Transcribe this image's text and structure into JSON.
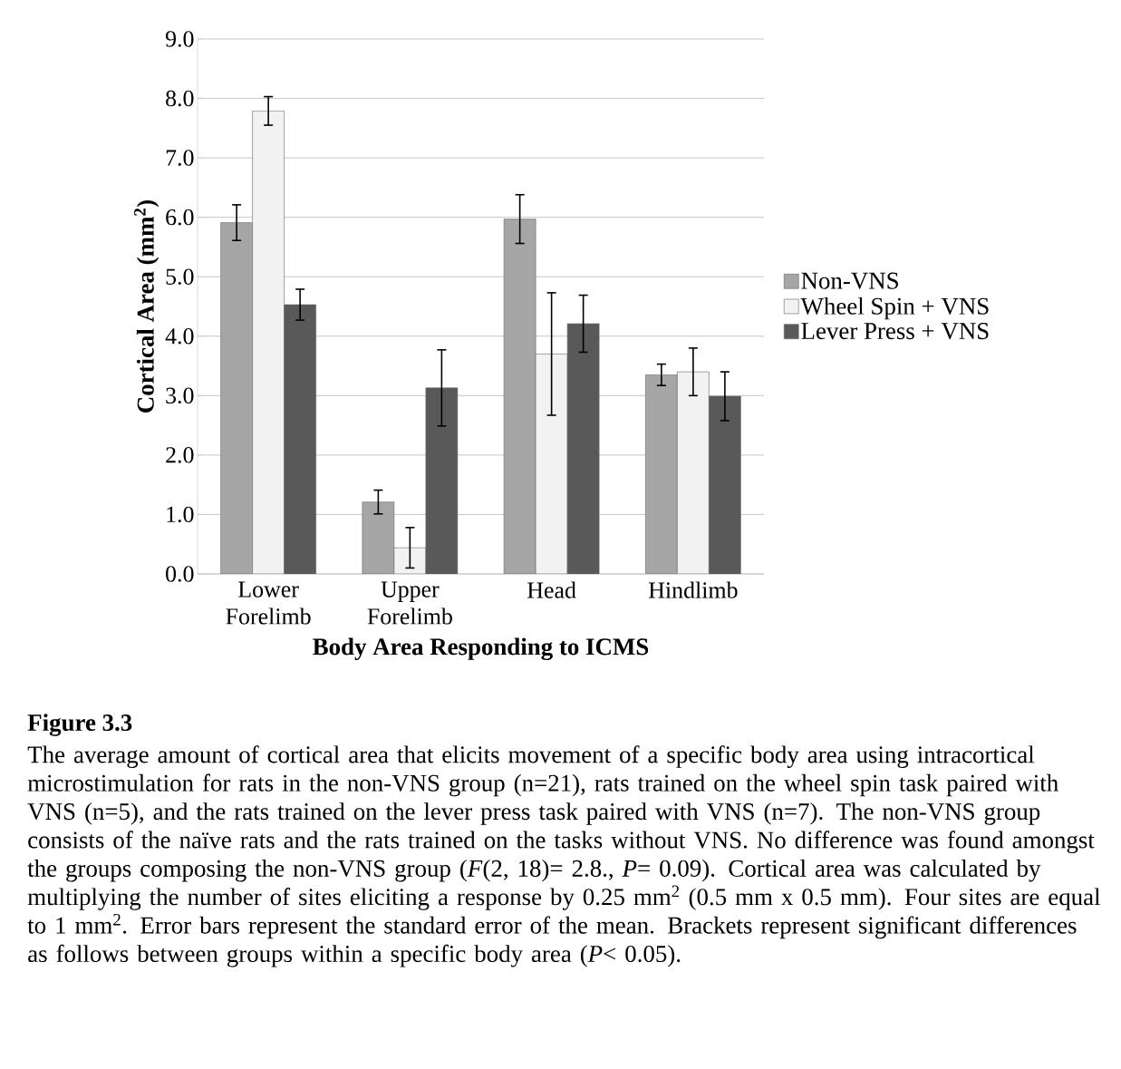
{
  "chart_data": {
    "type": "bar",
    "title": "Figure 3.3",
    "categories": [
      "Lower Forelimb",
      "Upper Forelimb",
      "Head",
      "Hindlimb"
    ],
    "xlabel": "Body Area Responding to ICMS",
    "ylabel": "Cortical Area (mm$^{2}$)",
    "series": [
      {
        "name": "Non-VNS",
        "color": "#a6a6a6",
        "values": [
          5.91,
          1.21,
          5.97,
          3.35
        ],
        "errors": [
          0.3,
          0.2,
          0.41,
          0.18
        ]
      },
      {
        "name": "Wheel Spin + VNS",
        "color": "#f2f2f2",
        "values": [
          7.79,
          0.44,
          3.7,
          3.4
        ],
        "errors": [
          0.24,
          0.34,
          1.03,
          0.4
        ]
      },
      {
        "name": "Lever Press + VNS",
        "color": "#595959",
        "values": [
          4.53,
          3.13,
          4.21,
          2.99
        ],
        "errors": [
          0.26,
          0.64,
          0.48,
          0.41
        ]
      }
    ],
    "ylim": [
      0,
      9
    ],
    "yticks": [
      {
        "value": 0,
        "label": "0.0"
      },
      {
        "value": 1,
        "label": "1.0"
      },
      {
        "value": 2,
        "label": "2.0"
      },
      {
        "value": 3,
        "label": "3.0"
      },
      {
        "value": 4,
        "label": "4.0"
      },
      {
        "value": 5,
        "label": "5.0"
      },
      {
        "value": 6,
        "label": "6.0"
      },
      {
        "value": 7,
        "label": "7.0"
      },
      {
        "value": 8,
        "label": "8.0"
      },
      {
        "value": 9,
        "label": "9.0"
      }
    ],
    "grid": "y",
    "legend": "right",
    "annotations": [
      "The average amount of cortical area that elicits movement of a specific body area using intracortical microstimulation for rats in the non-VNS group (n=21), rats trained on the wheel spin task paired with VNS (n=5), and the rats trained on the lever press task paired with VNS (n=7). The non-VNS group consists of the naïve rats and the rats trained on the tasks without VNS. No difference was found amongst the groups composing the non-VNS group (*F*(2, 18)= 2.8., *P*= 0.09). Cortical area was calculated by multiplying the number of sites eliciting a response by 0.25 mm$^{2}$ (0.5 mm x 0.5 mm). Four sites are equal to 1 mm$^{2}$. Error bars represent the standard error of the mean. Brackets represent significant differences as follows between groups within a specific body area (*P*< 0.05)."
    ]
  }
}
